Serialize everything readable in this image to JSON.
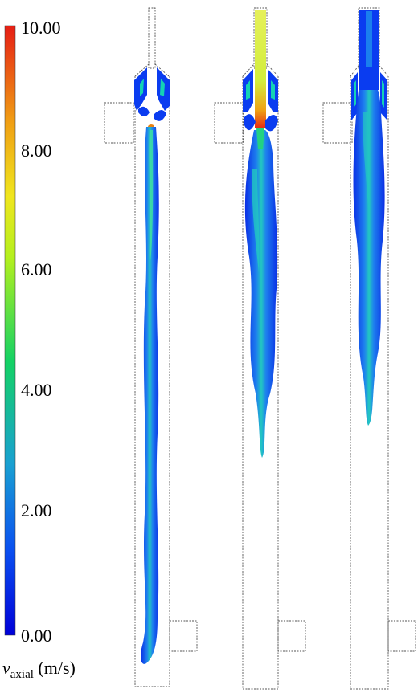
{
  "colorbar": {
    "title_symbol": "v",
    "title_subscript": "axial",
    "title_unit": " (m/s)",
    "tick_labels": [
      "10.00",
      "8.00",
      "6.00",
      "4.00",
      "2.00",
      "0.00"
    ],
    "value_range": [
      0,
      10
    ],
    "colormap": [
      "#0000d8",
      "#0a50f0",
      "#19a0d2",
      "#14d264",
      "#b4f01e",
      "#f0e61e",
      "#f0a014",
      "#e61e14"
    ]
  },
  "panels": [
    {
      "id": "left",
      "jet_colors": [
        "#0a3cf0",
        "#1e96e6",
        "#14d2b4"
      ]
    },
    {
      "id": "middle",
      "inlet_colors": [
        "#e8f050",
        "#b4f032",
        "#e63c14"
      ],
      "jet_colors": [
        "#0a3cf0",
        "#1e96e6",
        "#14d2b4"
      ]
    },
    {
      "id": "right",
      "jet_colors": [
        "#0a3cf0",
        "#1e96e6",
        "#14d2b4"
      ]
    }
  ]
}
